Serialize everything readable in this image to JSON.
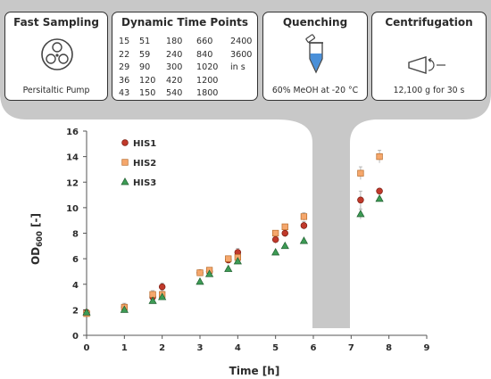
{
  "workflow": {
    "fast_sampling": {
      "title": "Fast Sampling",
      "icon": "peristaltic-pump-icon",
      "caption": "Persitaltic Pump"
    },
    "time_points": {
      "title": "Dynamic Time Points",
      "rows": [
        [
          "15",
          "51",
          "180",
          "660",
          "2400"
        ],
        [
          "22",
          "59",
          "240",
          "840",
          "3600"
        ],
        [
          "29",
          "90",
          "300",
          "1020",
          "in s"
        ],
        [
          "36",
          "120",
          "420",
          "1200",
          ""
        ],
        [
          "43",
          "150",
          "540",
          "1800",
          ""
        ]
      ]
    },
    "quenching": {
      "title": "Quenching",
      "icon": "tube-icon",
      "caption": "60% MeOH at -20 °C"
    },
    "centrifugation": {
      "title": "Centrifugation",
      "icon": "centrifuge-icon",
      "caption": "12,100 g for 30 s"
    }
  },
  "colors": {
    "banner": "#c8c8c8",
    "his1": "#c0392b",
    "his2": "#f5a76c",
    "his3": "#3d9b55",
    "axis": "#555555",
    "error": "#a8a8a8"
  },
  "chart_data": {
    "type": "scatter",
    "xlabel": "Time [h]",
    "ylabel": "OD600 [-]",
    "ylabel_main": "OD",
    "ylabel_sub": "600",
    "ylabel_unit": " [-]",
    "xlim": [
      0,
      9
    ],
    "ylim": [
      0,
      16
    ],
    "xticks": [
      "0",
      "1",
      "2",
      "3",
      "4",
      "5",
      "6",
      "7",
      "8",
      "9"
    ],
    "yticks": [
      "0",
      "2",
      "4",
      "6",
      "8",
      "10",
      "12",
      "14",
      "16"
    ],
    "legend_position": "top-left",
    "series": [
      {
        "name": "HIS1",
        "marker": "circle",
        "x": [
          0,
          1,
          1.75,
          2,
          3,
          3.25,
          3.75,
          4,
          5,
          5.25,
          5.75,
          7.25,
          7.75
        ],
        "y": [
          1.8,
          2.2,
          3.0,
          3.8,
          4.9,
          5.0,
          5.9,
          6.5,
          7.5,
          8.0,
          8.6,
          10.6,
          11.3
        ],
        "err": [
          0,
          0.3,
          0.3,
          0.3,
          0.2,
          0.2,
          0.2,
          0.3,
          0.3,
          0.3,
          0.3,
          0.7,
          0
        ]
      },
      {
        "name": "HIS2",
        "marker": "square",
        "x": [
          0,
          1,
          1.75,
          2,
          3,
          3.25,
          3.75,
          4,
          5,
          5.25,
          5.75,
          7.25,
          7.75
        ],
        "y": [
          1.7,
          2.2,
          3.2,
          3.2,
          4.9,
          5.1,
          6.0,
          6.1,
          8.0,
          8.5,
          9.3,
          12.7,
          14.0
        ],
        "err": [
          0,
          0.3,
          0.3,
          0.3,
          0.2,
          0.2,
          0.2,
          0.3,
          0.2,
          0.2,
          0.3,
          0.5,
          0.5
        ]
      },
      {
        "name": "HIS3",
        "marker": "triangle",
        "x": [
          0,
          1,
          1.75,
          2,
          3,
          3.25,
          3.75,
          4,
          5,
          5.25,
          5.75,
          7.25,
          7.75
        ],
        "y": [
          1.8,
          2.0,
          2.7,
          3.0,
          4.2,
          4.8,
          5.2,
          5.8,
          6.5,
          7.0,
          7.4,
          9.5,
          10.7
        ],
        "err": [
          0,
          0,
          0,
          0,
          0,
          0,
          0,
          0,
          0,
          0,
          0,
          0.4,
          0
        ]
      }
    ]
  }
}
